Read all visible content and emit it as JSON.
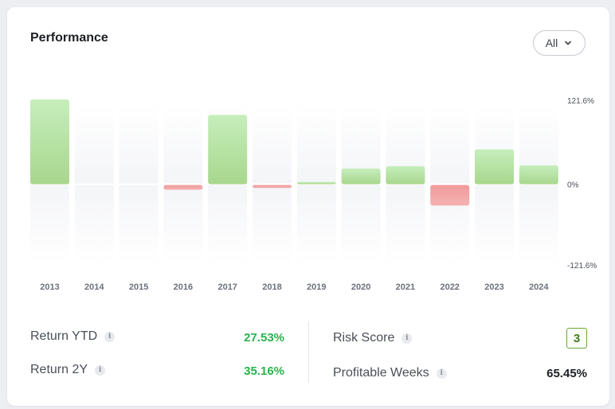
{
  "header": {
    "title": "Performance"
  },
  "dropdown": {
    "selected": "All"
  },
  "chart_data": {
    "type": "bar",
    "title": "Performance",
    "categories": [
      "2013",
      "2014",
      "2015",
      "2016",
      "2017",
      "2018",
      "2019",
      "2020",
      "2021",
      "2022",
      "2023",
      "2024"
    ],
    "values": [
      121.6,
      0,
      0,
      -7.2,
      99.5,
      -4.5,
      3.3,
      22.5,
      26.0,
      -31.0,
      50.0,
      27.0
    ],
    "ylim": [
      -121.6,
      121.6
    ],
    "ytick_labels": [
      "121.6%",
      "0%",
      "-121.6%"
    ],
    "colors": {
      "positive": "#a9da8f",
      "negative": "#f08f91"
    },
    "xlabel": "",
    "ylabel": ""
  },
  "stats": {
    "return_ytd": {
      "label": "Return YTD",
      "value": "27.53%"
    },
    "return_2y": {
      "label": "Return 2Y",
      "value": "35.16%"
    },
    "risk_score": {
      "label": "Risk Score",
      "value": "3"
    },
    "profitable_weeks": {
      "label": "Profitable Weeks",
      "value": "65.45%"
    }
  }
}
